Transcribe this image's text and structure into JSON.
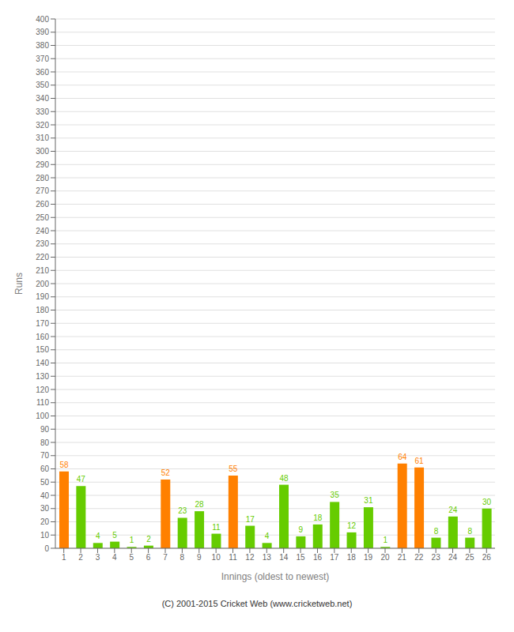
{
  "chart_data": {
    "type": "bar",
    "xlabel": "Innings (oldest to newest)",
    "ylabel": "Runs",
    "annotations": [
      "(C) 2001-2015 Cricket Web (www.cricketweb.net)"
    ],
    "categories": [
      1,
      2,
      3,
      4,
      5,
      6,
      7,
      8,
      9,
      10,
      11,
      12,
      13,
      14,
      15,
      16,
      17,
      18,
      19,
      20,
      21,
      22,
      23,
      24,
      25,
      26
    ],
    "values": [
      58,
      47,
      4,
      5,
      1,
      2,
      52,
      23,
      28,
      11,
      55,
      17,
      4,
      48,
      9,
      18,
      35,
      12,
      31,
      1,
      64,
      61,
      8,
      24,
      8,
      30
    ],
    "colors": [
      "#ff8000",
      "#66cc00",
      "#66cc00",
      "#66cc00",
      "#66cc00",
      "#66cc00",
      "#ff8000",
      "#66cc00",
      "#66cc00",
      "#66cc00",
      "#ff8000",
      "#66cc00",
      "#66cc00",
      "#66cc00",
      "#66cc00",
      "#66cc00",
      "#66cc00",
      "#66cc00",
      "#66cc00",
      "#66cc00",
      "#ff8000",
      "#ff8000",
      "#66cc00",
      "#66cc00",
      "#66cc00",
      "#66cc00"
    ],
    "ylim": [
      0,
      400
    ],
    "yticks": [
      0,
      10,
      20,
      30,
      40,
      50,
      60,
      70,
      80,
      90,
      100,
      110,
      120,
      130,
      140,
      150,
      160,
      170,
      180,
      190,
      200,
      210,
      220,
      230,
      240,
      250,
      260,
      270,
      280,
      290,
      300,
      310,
      320,
      330,
      340,
      350,
      360,
      370,
      380,
      390,
      400
    ],
    "grid": true,
    "data_labels": true
  }
}
